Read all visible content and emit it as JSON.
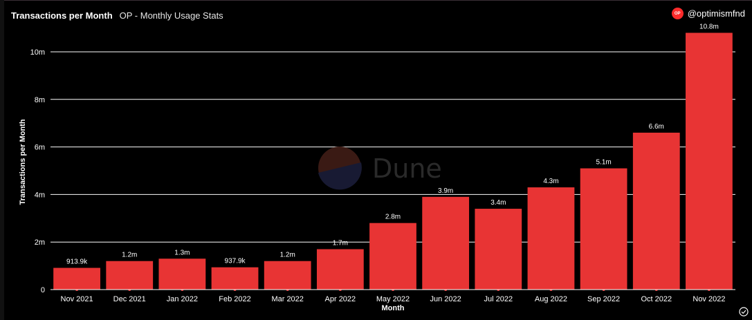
{
  "header": {
    "title": "Transactions per Month",
    "subtitle": "OP - Monthly Usage Stats"
  },
  "owner": {
    "badge_text": "OP",
    "handle": "@optimismfnd"
  },
  "watermark": "Dune",
  "colors": {
    "bar": "#e83434",
    "grid": "#ffffff",
    "background": "#000000"
  },
  "chart_data": {
    "type": "bar",
    "title": "Transactions per Month",
    "subtitle": "OP - Monthly Usage Stats",
    "xlabel": "Month",
    "ylabel": "Transactions per Month",
    "ylim": [
      0,
      11000000
    ],
    "yticks": [
      0,
      2000000,
      4000000,
      6000000,
      8000000,
      10000000
    ],
    "ytick_labels": [
      "0",
      "2m",
      "4m",
      "6m",
      "8m",
      "10m"
    ],
    "grid": true,
    "categories": [
      "Nov 2021",
      "Dec 2021",
      "Jan 2022",
      "Feb 2022",
      "Mar 2022",
      "Apr 2022",
      "May 2022",
      "Jun 2022",
      "Jul 2022",
      "Aug 2022",
      "Sep 2022",
      "Oct 2022",
      "Nov 2022"
    ],
    "values": [
      913900,
      1200000,
      1300000,
      937900,
      1200000,
      1700000,
      2800000,
      3900000,
      3400000,
      4300000,
      5100000,
      6600000,
      10800000
    ],
    "value_labels": [
      "913.9k",
      "1.2m",
      "1.3m",
      "937.9k",
      "1.2m",
      "1.7m",
      "2.8m",
      "3.9m",
      "3.4m",
      "4.3m",
      "5.1m",
      "6.6m",
      "10.8m"
    ]
  }
}
